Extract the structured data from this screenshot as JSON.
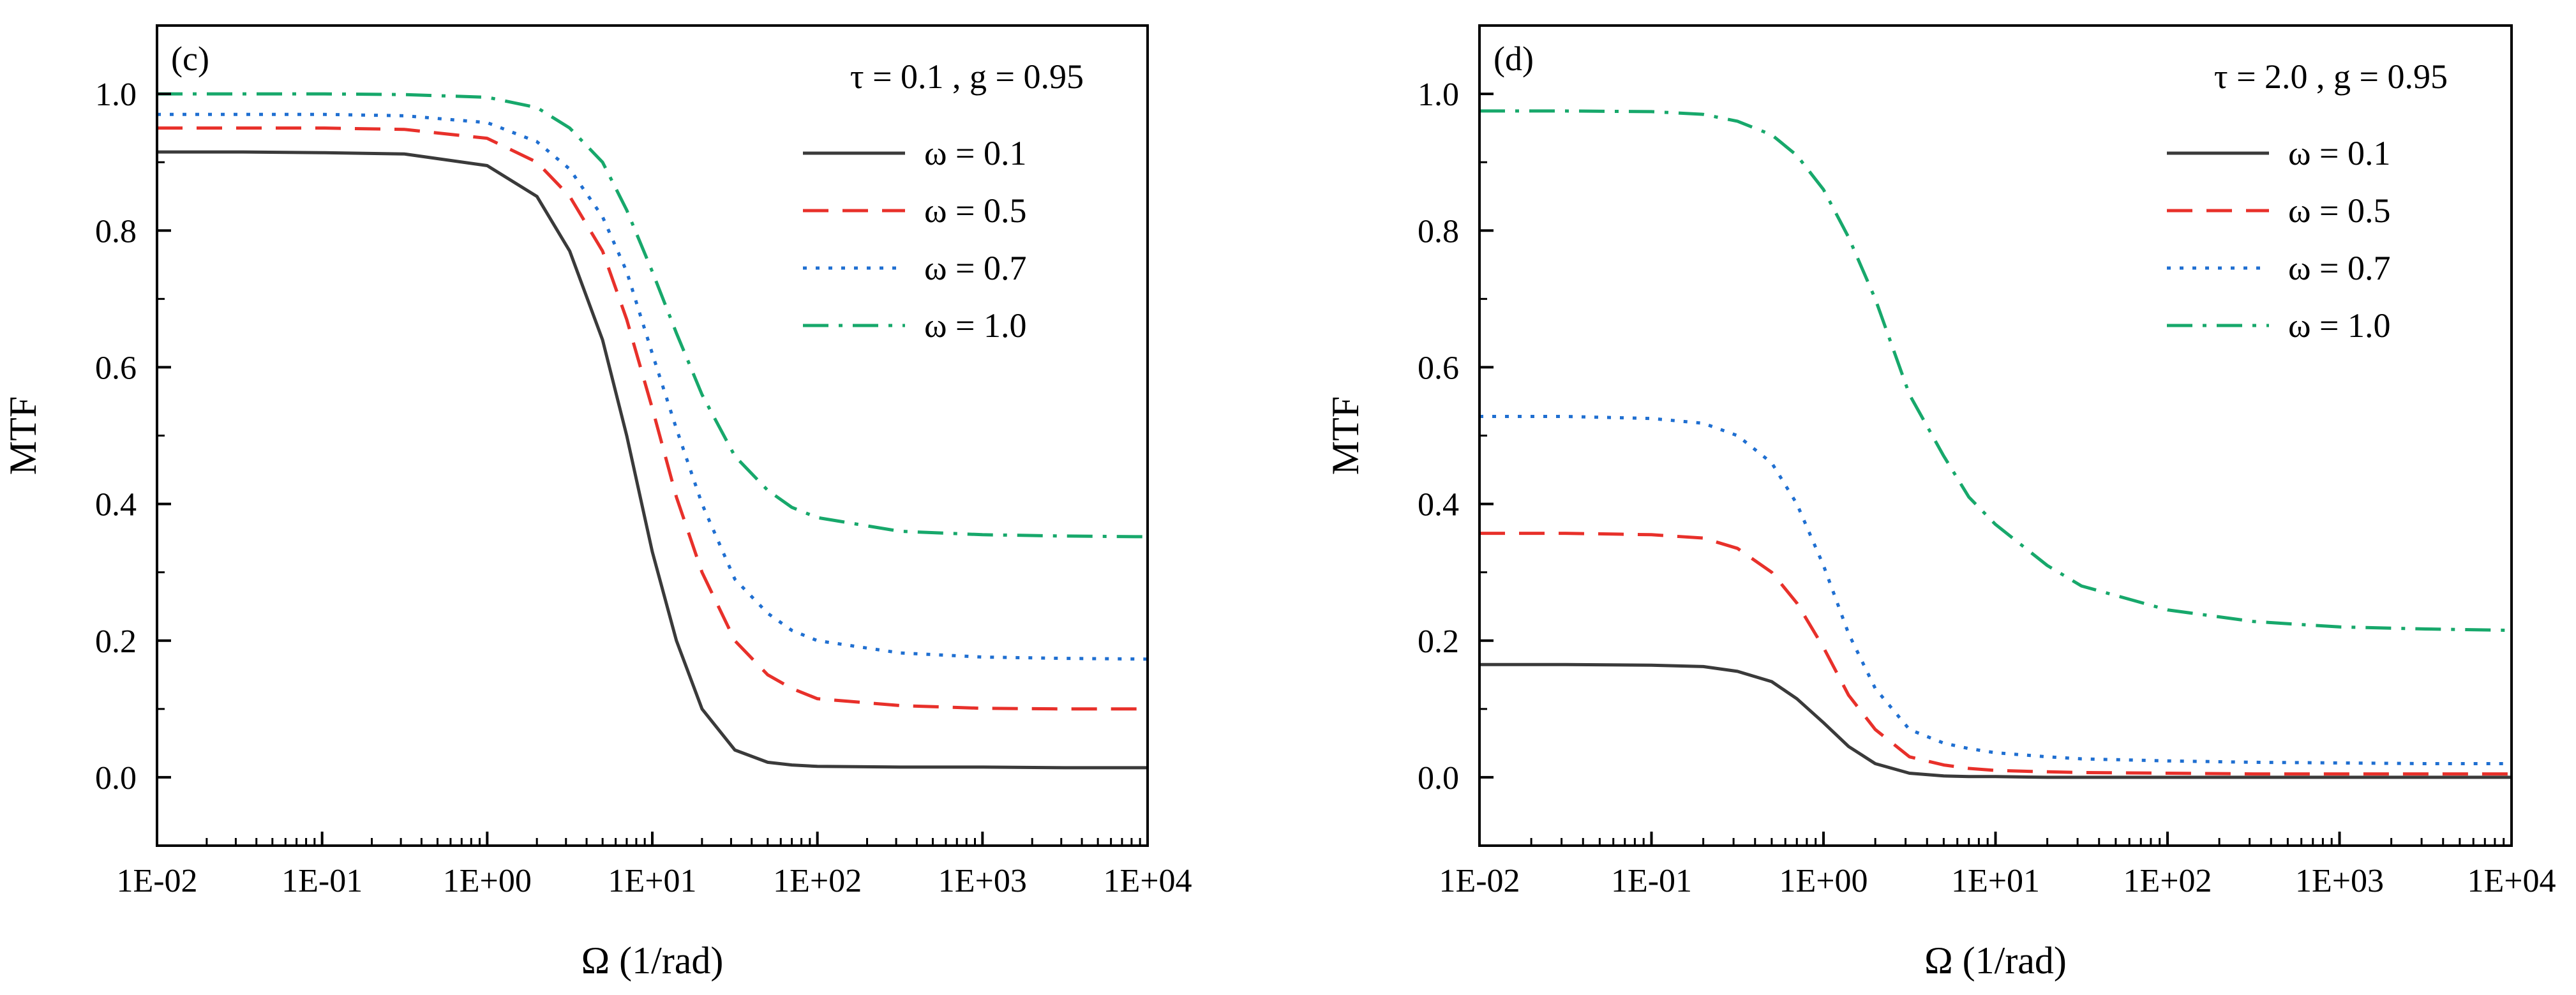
{
  "chart_data": [
    {
      "type": "line",
      "panel_label": "(c)",
      "params_text": "τ = 0.1 , g = 0.95",
      "xlabel": "Ω (1/rad)",
      "ylabel": "MTF",
      "xscale": "log",
      "xlim": [
        0.01,
        10000
      ],
      "ylim": [
        -0.1,
        1.1
      ],
      "xticks": [
        0.01,
        0.1,
        1,
        10,
        100,
        1000,
        10000
      ],
      "xtick_labels": [
        "1E-02",
        "1E-01",
        "1E+00",
        "1E+01",
        "1E+02",
        "1E+03",
        "1E+04"
      ],
      "yticks": [
        0.0,
        0.2,
        0.4,
        0.6,
        0.8,
        1.0
      ],
      "ytick_labels": [
        "0.0",
        "0.2",
        "0.4",
        "0.6",
        "0.8",
        "1.0"
      ],
      "legend_position": "top-right",
      "x": [
        0.01,
        0.0316,
        0.1,
        0.316,
        1,
        2,
        3.16,
        5,
        7,
        10,
        14,
        20,
        31.6,
        50,
        70,
        100,
        316,
        1000,
        3162,
        10000
      ],
      "series": [
        {
          "name": "ω = 0.1",
          "color": "#3a3a3a",
          "dash": "solid",
          "values": [
            0.915,
            0.915,
            0.914,
            0.912,
            0.895,
            0.85,
            0.77,
            0.64,
            0.5,
            0.33,
            0.2,
            0.1,
            0.04,
            0.022,
            0.018,
            0.016,
            0.015,
            0.015,
            0.014,
            0.014
          ]
        },
        {
          "name": "ω = 0.5",
          "color": "#e8302a",
          "dash": "dashed",
          "values": [
            0.95,
            0.95,
            0.95,
            0.948,
            0.935,
            0.9,
            0.85,
            0.77,
            0.67,
            0.54,
            0.41,
            0.3,
            0.2,
            0.15,
            0.13,
            0.115,
            0.105,
            0.101,
            0.1,
            0.1
          ]
        },
        {
          "name": "ω = 0.7",
          "color": "#1f6fd1",
          "dash": "dotted",
          "values": [
            0.97,
            0.97,
            0.97,
            0.968,
            0.958,
            0.93,
            0.89,
            0.82,
            0.74,
            0.62,
            0.51,
            0.4,
            0.29,
            0.24,
            0.215,
            0.2,
            0.182,
            0.176,
            0.174,
            0.173
          ]
        },
        {
          "name": "ω = 1.0",
          "color": "#17a86b",
          "dash": "dashdot",
          "values": [
            1.0,
            1.0,
            1.0,
            0.999,
            0.995,
            0.98,
            0.95,
            0.9,
            0.83,
            0.74,
            0.65,
            0.56,
            0.47,
            0.42,
            0.395,
            0.38,
            0.36,
            0.355,
            0.353,
            0.352
          ]
        }
      ]
    },
    {
      "type": "line",
      "panel_label": "(d)",
      "params_text": "τ = 2.0 , g = 0.95",
      "xlabel": "Ω (1/rad)",
      "ylabel": "MTF",
      "xscale": "log",
      "xlim": [
        0.01,
        10000
      ],
      "ylim": [
        -0.1,
        1.1
      ],
      "xticks": [
        0.01,
        0.1,
        1,
        10,
        100,
        1000,
        10000
      ],
      "xtick_labels": [
        "1E-02",
        "1E-01",
        "1E+00",
        "1E+01",
        "1E+02",
        "1E+03",
        "1E+04"
      ],
      "yticks": [
        0.0,
        0.2,
        0.4,
        0.6,
        0.8,
        1.0
      ],
      "ytick_labels": [
        "0.0",
        "0.2",
        "0.4",
        "0.6",
        "0.8",
        "1.0"
      ],
      "legend_position": "top-right",
      "x": [
        0.01,
        0.0316,
        0.1,
        0.2,
        0.316,
        0.5,
        0.7,
        1,
        1.4,
        2,
        3.16,
        5,
        7,
        10,
        20,
        31.6,
        100,
        316,
        1000,
        3162,
        10000
      ],
      "series": [
        {
          "name": "ω = 0.1",
          "color": "#3a3a3a",
          "dash": "solid",
          "values": [
            0.165,
            0.165,
            0.164,
            0.162,
            0.155,
            0.14,
            0.115,
            0.08,
            0.045,
            0.02,
            0.006,
            0.002,
            0.001,
            0.001,
            0.0,
            0.0,
            0.0,
            0.0,
            0.0,
            0.0,
            0.0
          ]
        },
        {
          "name": "ω = 0.5",
          "color": "#e8302a",
          "dash": "dashed",
          "values": [
            0.357,
            0.357,
            0.355,
            0.35,
            0.335,
            0.3,
            0.255,
            0.19,
            0.12,
            0.07,
            0.03,
            0.018,
            0.013,
            0.01,
            0.008,
            0.007,
            0.006,
            0.005,
            0.005,
            0.005,
            0.005
          ]
        },
        {
          "name": "ω = 0.7",
          "color": "#1f6fd1",
          "dash": "dotted",
          "values": [
            0.528,
            0.528,
            0.525,
            0.518,
            0.5,
            0.46,
            0.4,
            0.31,
            0.21,
            0.13,
            0.07,
            0.05,
            0.042,
            0.036,
            0.03,
            0.027,
            0.024,
            0.022,
            0.021,
            0.02,
            0.02
          ]
        },
        {
          "name": "ω = 1.0",
          "color": "#17a86b",
          "dash": "dashdot",
          "values": [
            0.975,
            0.975,
            0.974,
            0.97,
            0.96,
            0.94,
            0.91,
            0.86,
            0.79,
            0.7,
            0.56,
            0.47,
            0.41,
            0.37,
            0.31,
            0.28,
            0.245,
            0.228,
            0.22,
            0.217,
            0.215
          ]
        }
      ]
    }
  ]
}
